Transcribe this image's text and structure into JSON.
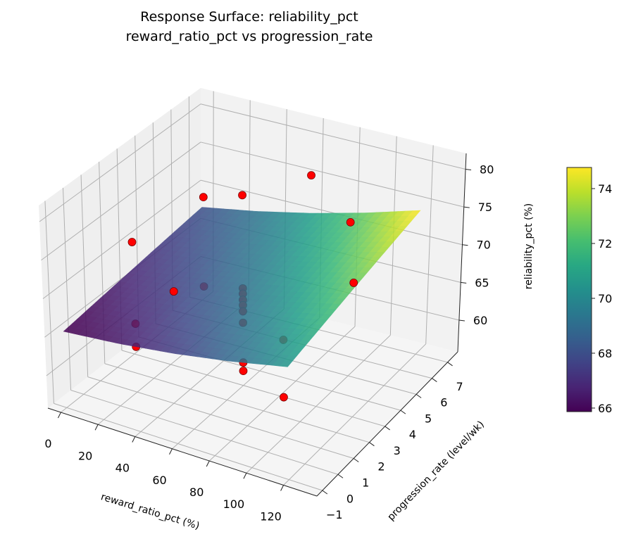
{
  "title_lines": [
    "Response Surface: reliability_pct",
    "reward_ratio_pct vs progression_rate"
  ],
  "chart_data": {
    "type": "surface",
    "title": "Response Surface: reliability_pct / reward_ratio_pct vs progression_rate",
    "xlabel": "reward_ratio_pct (%)",
    "ylabel": "progression_rate (level/wk)",
    "zlabel": "reliability_pct (%)",
    "xlim": [
      -7,
      138
    ],
    "ylim": [
      -1.35,
      7.65
    ],
    "zlim": [
      55.8,
      82.1
    ],
    "xticks": [
      0,
      20,
      40,
      60,
      80,
      100,
      120
    ],
    "yticks": [
      -1,
      0,
      1,
      2,
      3,
      4,
      5,
      6,
      7
    ],
    "zticks": [
      60,
      65,
      70,
      75,
      80
    ],
    "grid": true,
    "surface": {
      "cmap": "viridis",
      "x": [
        0,
        30,
        60,
        90,
        120
      ],
      "y": [
        -1,
        1,
        3,
        5,
        7
      ],
      "z": [
        [
          65.7,
          66.45,
          67.5,
          68.85,
          70.5
        ],
        [
          66.28,
          67.15,
          68.33,
          69.8,
          71.57
        ],
        [
          66.85,
          67.85,
          69.15,
          70.75,
          72.65
        ],
        [
          67.43,
          68.55,
          69.97,
          71.7,
          73.72
        ],
        [
          68.0,
          69.25,
          70.8,
          72.65,
          74.8
        ]
      ]
    },
    "points": [
      {
        "x": 20,
        "y": 1,
        "z": 64.7
      },
      {
        "x": 20,
        "y": 1,
        "z": 61.7
      },
      {
        "x": 0,
        "y": 3,
        "z": 70.4
      },
      {
        "x": 60,
        "y": -1,
        "z": 75.6
      },
      {
        "x": 20,
        "y": 5,
        "z": 74.1
      },
      {
        "x": 20,
        "y": 5,
        "z": 62.4
      },
      {
        "x": 60,
        "y": 7,
        "z": 75.8
      },
      {
        "x": 120,
        "y": 3,
        "z": 73.4
      },
      {
        "x": 100,
        "y": 5,
        "z": 76.0
      },
      {
        "x": 100,
        "y": 1,
        "z": 68.5
      },
      {
        "x": 100,
        "y": 1,
        "z": 61.0
      },
      {
        "x": 60,
        "y": 3,
        "z": 80.7
      },
      {
        "x": 60,
        "y": 3,
        "z": 68.5
      },
      {
        "x": 60,
        "y": 3,
        "z": 67.8
      },
      {
        "x": 60,
        "y": 3,
        "z": 67.0
      },
      {
        "x": 60,
        "y": 3,
        "z": 66.3
      },
      {
        "x": 60,
        "y": 3,
        "z": 65.5
      },
      {
        "x": 60,
        "y": 3,
        "z": 64.0
      },
      {
        "x": 60,
        "y": 3,
        "z": 58.8
      },
      {
        "x": 60,
        "y": 3,
        "z": 57.7
      }
    ],
    "point_color": "#ff0000",
    "colorbar": {
      "cmap": "viridis",
      "range": [
        65.87,
        74.77
      ],
      "ticks": [
        66,
        68,
        70,
        72,
        74
      ]
    }
  }
}
